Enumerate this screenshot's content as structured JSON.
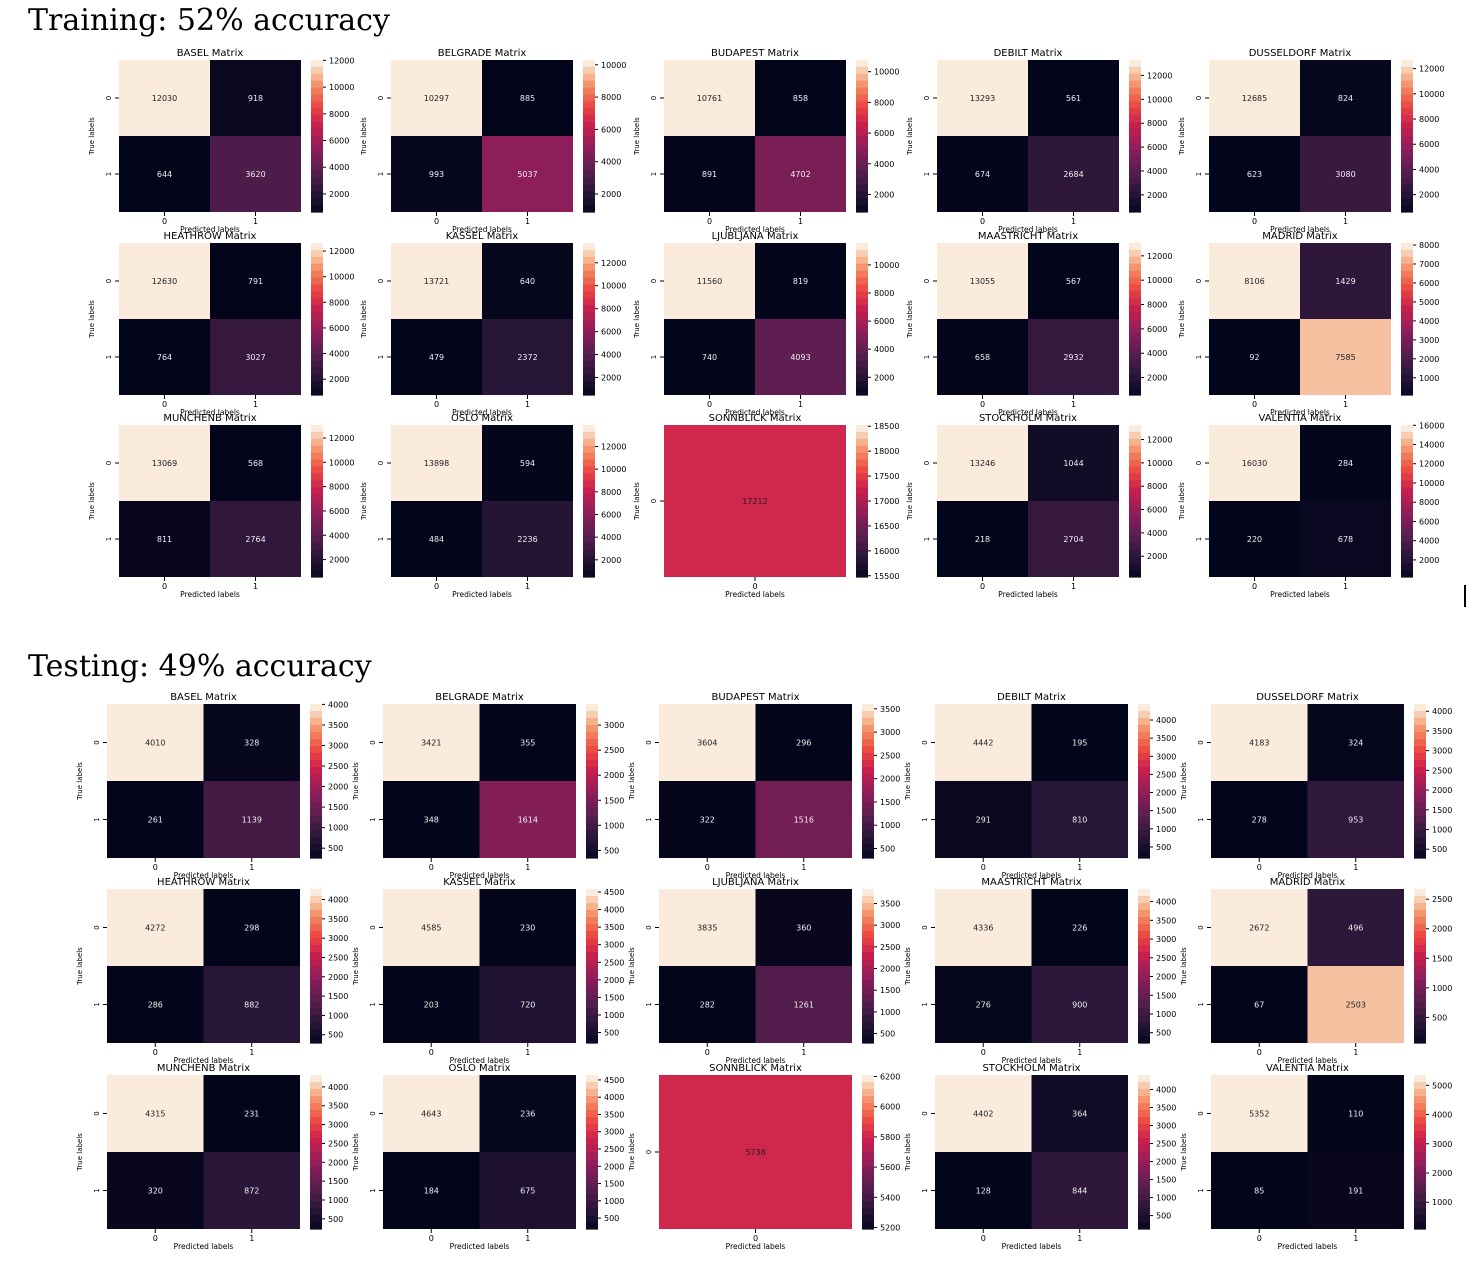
{
  "sections": [
    {
      "title": "Training: 52% accuracy",
      "matrices": [
        {
          "title": "BASEL Matrix",
          "cells": [
            [
              12030,
              918
            ],
            [
              644,
              3620
            ]
          ],
          "cbar": [
            2000,
            4000,
            6000,
            8000,
            10000,
            12000
          ]
        },
        {
          "title": "BELGRADE Matrix",
          "cells": [
            [
              10297,
              885
            ],
            [
              993,
              5037
            ]
          ],
          "cbar": [
            2000,
            4000,
            6000,
            8000,
            10000
          ]
        },
        {
          "title": "BUDAPEST Matrix",
          "cells": [
            [
              10761,
              858
            ],
            [
              891,
              4702
            ]
          ],
          "cbar": [
            2000,
            4000,
            6000,
            8000,
            10000
          ]
        },
        {
          "title": "DEBILT Matrix",
          "cells": [
            [
              13293,
              561
            ],
            [
              674,
              2684
            ]
          ],
          "cbar": [
            2000,
            4000,
            6000,
            8000,
            10000,
            12000
          ]
        },
        {
          "title": "DUSSELDORF Matrix",
          "cells": [
            [
              12685,
              824
            ],
            [
              623,
              3080
            ]
          ],
          "cbar": [
            2000,
            4000,
            6000,
            8000,
            10000,
            12000
          ]
        },
        {
          "title": "HEATHROW Matrix",
          "cells": [
            [
              12630,
              791
            ],
            [
              764,
              3027
            ]
          ],
          "cbar": [
            2000,
            4000,
            6000,
            8000,
            10000,
            12000
          ]
        },
        {
          "title": "KASSEL Matrix",
          "cells": [
            [
              13721,
              640
            ],
            [
              479,
              2372
            ]
          ],
          "cbar": [
            2000,
            4000,
            6000,
            8000,
            10000,
            12000
          ]
        },
        {
          "title": "LJUBLJANA Matrix",
          "cells": [
            [
              11560,
              819
            ],
            [
              740,
              4093
            ]
          ],
          "cbar": [
            2000,
            4000,
            6000,
            8000,
            10000
          ]
        },
        {
          "title": "MAASTRICHT Matrix",
          "cells": [
            [
              13055,
              567
            ],
            [
              658,
              2932
            ]
          ],
          "cbar": [
            2000,
            4000,
            6000,
            8000,
            10000,
            12000
          ]
        },
        {
          "title": "MADRID Matrix",
          "cells": [
            [
              8106,
              1429
            ],
            [
              92,
              7585
            ]
          ],
          "cbar": [
            1000,
            2000,
            3000,
            4000,
            5000,
            6000,
            7000,
            8000
          ]
        },
        {
          "title": "MUNCHENB Matrix",
          "cells": [
            [
              13069,
              568
            ],
            [
              811,
              2764
            ]
          ],
          "cbar": [
            2000,
            4000,
            6000,
            8000,
            10000,
            12000
          ]
        },
        {
          "title": "OSLO Matrix",
          "cells": [
            [
              13898,
              594
            ],
            [
              484,
              2236
            ]
          ],
          "cbar": [
            2000,
            4000,
            6000,
            8000,
            10000,
            12000
          ]
        },
        {
          "title": "SONNBLICK Matrix",
          "cells": [
            [
              17212
            ]
          ],
          "cbar": [
            15500,
            16000,
            16500,
            17000,
            17500,
            18000,
            18500
          ]
        },
        {
          "title": "STOCKHOLM Matrix",
          "cells": [
            [
              13246,
              1044
            ],
            [
              218,
              2704
            ]
          ],
          "cbar": [
            2000,
            4000,
            6000,
            8000,
            10000,
            12000
          ]
        },
        {
          "title": "VALENTIA Matrix",
          "cells": [
            [
              16030,
              284
            ],
            [
              220,
              678
            ]
          ],
          "cbar": [
            2000,
            4000,
            6000,
            8000,
            10000,
            12000,
            14000,
            16000
          ]
        }
      ]
    },
    {
      "title": "Testing: 49% accuracy",
      "matrices": [
        {
          "title": "BASEL Matrix",
          "cells": [
            [
              4010,
              328
            ],
            [
              261,
              1139
            ]
          ],
          "cbar": [
            500,
            1000,
            1500,
            2000,
            2500,
            3000,
            3500,
            4000
          ]
        },
        {
          "title": "BELGRADE Matrix",
          "cells": [
            [
              3421,
              355
            ],
            [
              348,
              1614
            ]
          ],
          "cbar": [
            500,
            1000,
            1500,
            2000,
            2500,
            3000
          ]
        },
        {
          "title": "BUDAPEST Matrix",
          "cells": [
            [
              3604,
              296
            ],
            [
              322,
              1516
            ]
          ],
          "cbar": [
            500,
            1000,
            1500,
            2000,
            2500,
            3000,
            3500
          ]
        },
        {
          "title": "DEBILT Matrix",
          "cells": [
            [
              4442,
              195
            ],
            [
              291,
              810
            ]
          ],
          "cbar": [
            500,
            1000,
            1500,
            2000,
            2500,
            3000,
            3500,
            4000
          ]
        },
        {
          "title": "DUSSELDORF Matrix",
          "cells": [
            [
              4183,
              324
            ],
            [
              278,
              953
            ]
          ],
          "cbar": [
            500,
            1000,
            1500,
            2000,
            2500,
            3000,
            3500,
            4000
          ]
        },
        {
          "title": "HEATHROW Matrix",
          "cells": [
            [
              4272,
              298
            ],
            [
              286,
              882
            ]
          ],
          "cbar": [
            500,
            1000,
            1500,
            2000,
            2500,
            3000,
            3500,
            4000
          ]
        },
        {
          "title": "KASSEL Matrix",
          "cells": [
            [
              4585,
              230
            ],
            [
              203,
              720
            ]
          ],
          "cbar": [
            500,
            1000,
            1500,
            2000,
            2500,
            3000,
            3500,
            4000,
            4500
          ]
        },
        {
          "title": "LJUBLJANA Matrix",
          "cells": [
            [
              3835,
              360
            ],
            [
              282,
              1261
            ]
          ],
          "cbar": [
            500,
            1000,
            1500,
            2000,
            2500,
            3000,
            3500
          ]
        },
        {
          "title": "MAASTRICHT Matrix",
          "cells": [
            [
              4336,
              226
            ],
            [
              276,
              900
            ]
          ],
          "cbar": [
            500,
            1000,
            1500,
            2000,
            2500,
            3000,
            3500,
            4000
          ]
        },
        {
          "title": "MADRID Matrix",
          "cells": [
            [
              2672,
              496
            ],
            [
              67,
              2503
            ]
          ],
          "cbar": [
            500,
            1000,
            1500,
            2000,
            2500
          ]
        },
        {
          "title": "MUNCHENB Matrix",
          "cells": [
            [
              4315,
              231
            ],
            [
              320,
              872
            ]
          ],
          "cbar": [
            500,
            1000,
            1500,
            2000,
            2500,
            3000,
            3500,
            4000
          ]
        },
        {
          "title": "OSLO Matrix",
          "cells": [
            [
              4643,
              236
            ],
            [
              184,
              675
            ]
          ],
          "cbar": [
            500,
            1000,
            1500,
            2000,
            2500,
            3000,
            3500,
            4000,
            4500
          ]
        },
        {
          "title": "SONNBLICK Matrix",
          "cells": [
            [
              5738
            ]
          ],
          "cbar": [
            5200,
            5400,
            5600,
            5800,
            6000,
            6200
          ]
        },
        {
          "title": "STOCKHOLM Matrix",
          "cells": [
            [
              4402,
              364
            ],
            [
              128,
              844
            ]
          ],
          "cbar": [
            500,
            1000,
            1500,
            2000,
            2500,
            3000,
            3500,
            4000
          ]
        },
        {
          "title": "VALENTIA Matrix",
          "cells": [
            [
              5352,
              110
            ],
            [
              85,
              191
            ]
          ],
          "cbar": [
            1000,
            2000,
            3000,
            4000,
            5000
          ]
        }
      ]
    }
  ],
  "labels": {
    "xlabel": "Predicted labels",
    "ylabel": "True labels",
    "ticks": [
      "0",
      "1"
    ]
  },
  "chart_data": {
    "type": "heatmap",
    "colormap": "rocket",
    "panels_per_row": 5,
    "note_values": "see sections[].matrices[].cells (rows = true label, cols = predicted label)"
  }
}
